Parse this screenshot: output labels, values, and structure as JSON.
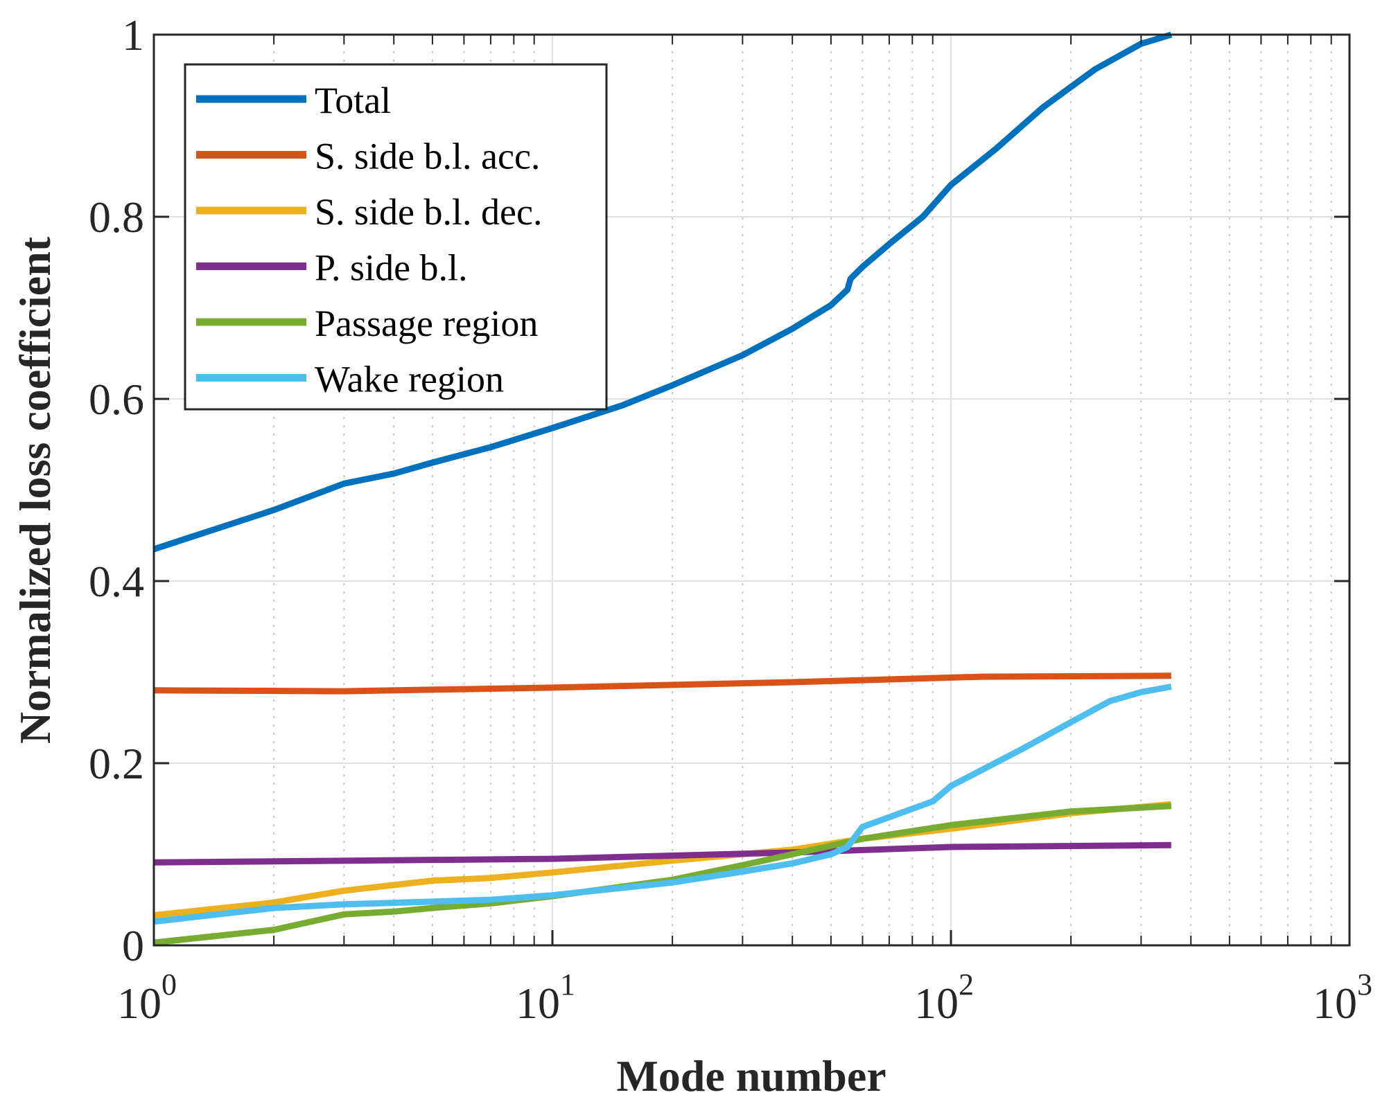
{
  "chart_data": {
    "type": "line",
    "title": "",
    "xlabel": "Mode number",
    "ylabel": "Normalized loss coefficient",
    "xscale": "log",
    "xlim": [
      1,
      1000
    ],
    "ylim": [
      0,
      1
    ],
    "grid": true,
    "legend_placement": "top-left",
    "xticks": [
      {
        "base": "10",
        "exp": "0",
        "value": 1
      },
      {
        "base": "10",
        "exp": "1",
        "value": 10
      },
      {
        "base": "10",
        "exp": "2",
        "value": 100
      },
      {
        "base": "10",
        "exp": "3",
        "value": 1000
      }
    ],
    "yticks": [
      {
        "label": "0",
        "value": 0
      },
      {
        "label": "0.2",
        "value": 0.2
      },
      {
        "label": "0.4",
        "value": 0.4
      },
      {
        "label": "0.6",
        "value": 0.6
      },
      {
        "label": "0.8",
        "value": 0.8
      },
      {
        "label": "1",
        "value": 1
      }
    ],
    "series": [
      {
        "name": "Total",
        "color": "#0072BD",
        "x": [
          1,
          2,
          3,
          4,
          5,
          7,
          10,
          15,
          20,
          30,
          40,
          50,
          55,
          56,
          60,
          70,
          85,
          100,
          130,
          170,
          230,
          300,
          357
        ],
        "y": [
          0.435,
          0.478,
          0.507,
          0.518,
          0.53,
          0.547,
          0.568,
          0.593,
          0.615,
          0.648,
          0.677,
          0.703,
          0.72,
          0.732,
          0.745,
          0.77,
          0.8,
          0.835,
          0.875,
          0.92,
          0.962,
          0.99,
          1.0
        ]
      },
      {
        "name": "S. side b.l. acc.",
        "color": "#D95319",
        "x": [
          1,
          3,
          10,
          40,
          120,
          357
        ],
        "y": [
          0.28,
          0.279,
          0.283,
          0.289,
          0.295,
          0.296
        ]
      },
      {
        "name": "S. side b.l. dec.",
        "color": "#EDB120",
        "x": [
          1,
          2,
          3,
          5,
          7,
          10,
          20,
          40,
          60,
          100,
          200,
          357
        ],
        "y": [
          0.033,
          0.047,
          0.06,
          0.071,
          0.074,
          0.08,
          0.093,
          0.105,
          0.117,
          0.128,
          0.145,
          0.155
        ]
      },
      {
        "name": "P. side b.l.",
        "color": "#7E2F8E",
        "x": [
          1,
          10,
          40,
          100,
          357
        ],
        "y": [
          0.091,
          0.095,
          0.102,
          0.108,
          0.11
        ]
      },
      {
        "name": "Passage region",
        "color": "#77AC30",
        "x": [
          1,
          2,
          3,
          4,
          5,
          7,
          10,
          20,
          30,
          40,
          60,
          100,
          200,
          357
        ],
        "y": [
          0.003,
          0.017,
          0.034,
          0.037,
          0.041,
          0.046,
          0.054,
          0.072,
          0.088,
          0.1,
          0.117,
          0.132,
          0.147,
          0.153
        ]
      },
      {
        "name": "Wake region",
        "color": "#4DBEEE",
        "x": [
          1,
          2,
          3,
          5,
          7,
          10,
          20,
          30,
          40,
          50,
          55,
          60,
          80,
          90,
          100,
          150,
          200,
          250,
          300,
          357
        ],
        "y": [
          0.026,
          0.041,
          0.045,
          0.048,
          0.05,
          0.055,
          0.069,
          0.081,
          0.09,
          0.1,
          0.108,
          0.13,
          0.15,
          0.158,
          0.175,
          0.215,
          0.245,
          0.268,
          0.278,
          0.284
        ]
      }
    ]
  }
}
